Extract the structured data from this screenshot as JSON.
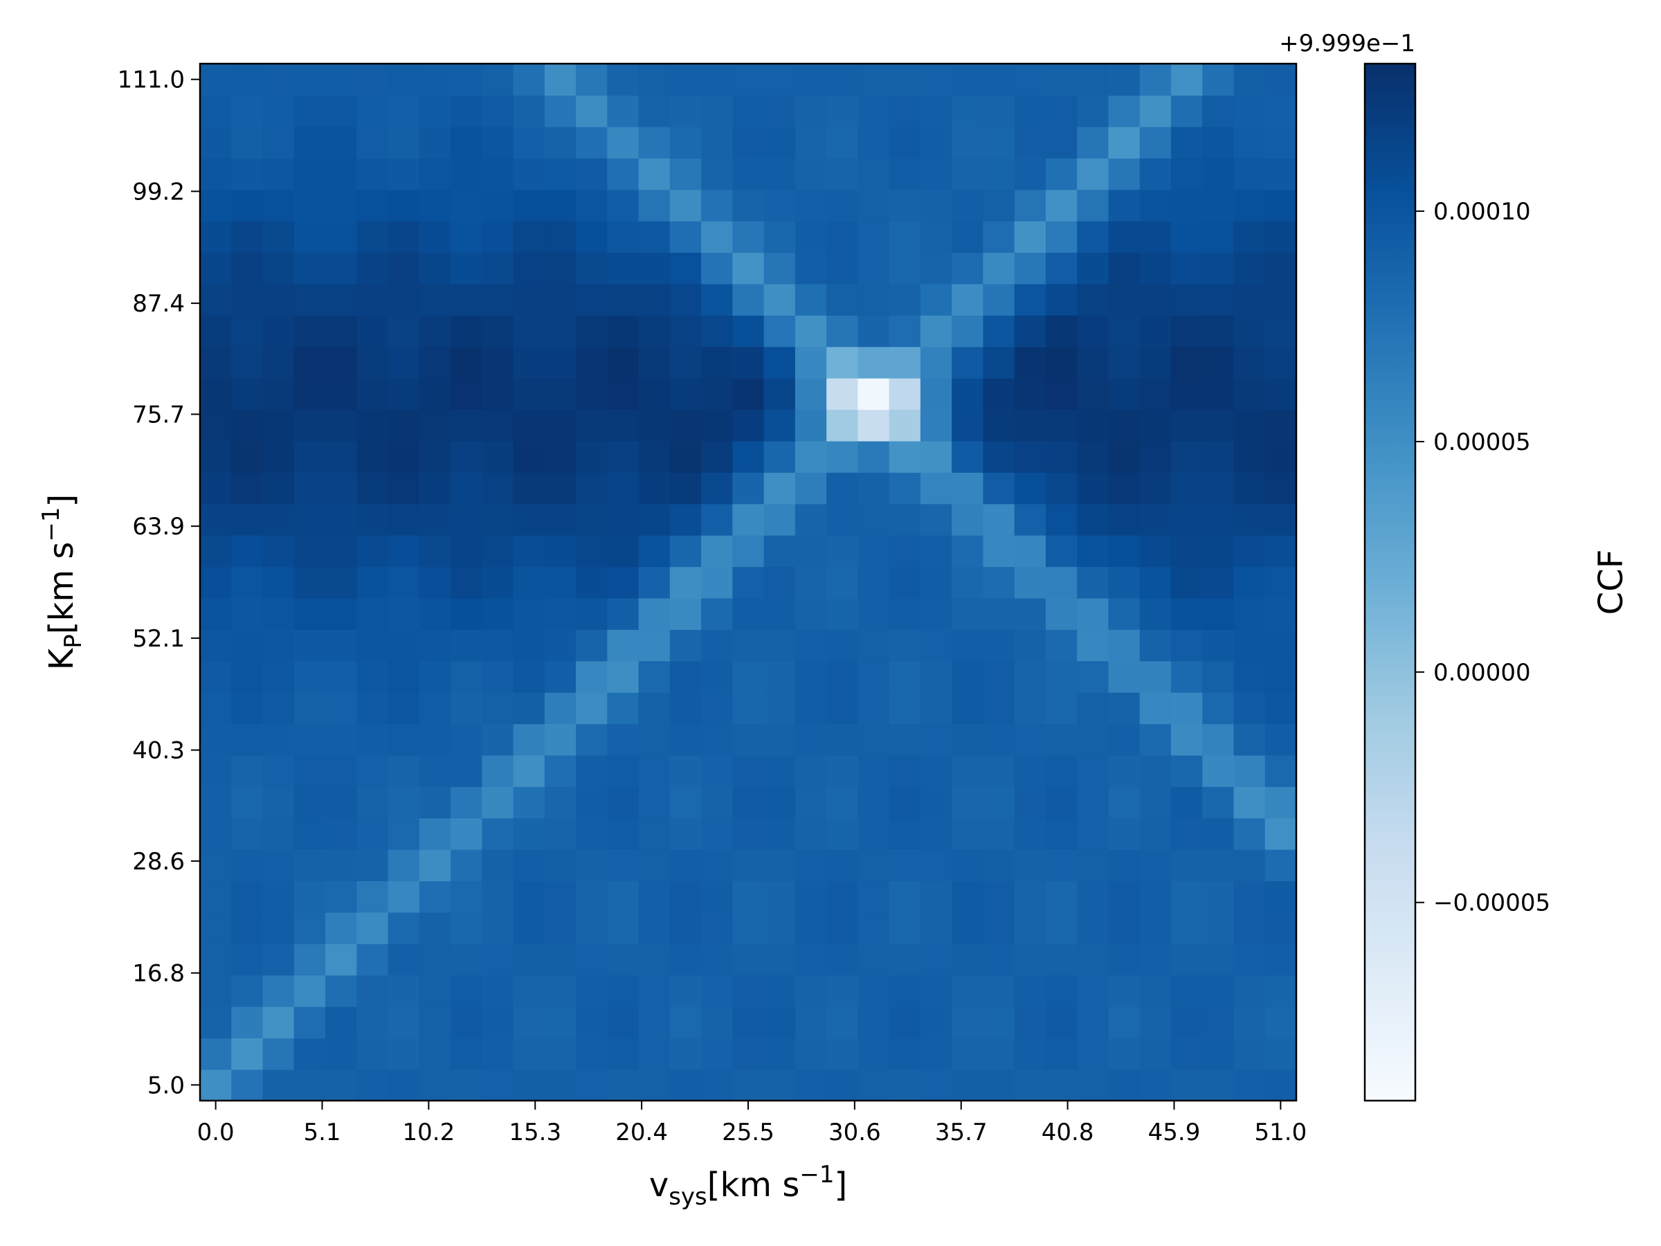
{
  "chart_data": {
    "type": "heatmap",
    "colormap": "Blues",
    "xlabel": "v_sys [km s^-1]",
    "ylabel": "K_P [km s^-1]",
    "colorbar_label": "CCF",
    "colorbar_offset": "+9.999e−1",
    "x_ticks": [
      "0.0",
      "5.1",
      "10.2",
      "15.3",
      "20.4",
      "25.5",
      "30.6",
      "35.7",
      "40.8",
      "45.9",
      "51.0"
    ],
    "x_tick_values": [
      0.0,
      5.1,
      10.2,
      15.3,
      20.4,
      25.5,
      30.6,
      35.7,
      40.8,
      45.9,
      51.0
    ],
    "y_ticks": [
      "5.0",
      "16.8",
      "28.6",
      "40.3",
      "52.1",
      "63.9",
      "75.7",
      "87.4",
      "99.2",
      "111.0"
    ],
    "y_tick_values": [
      5.0,
      16.8,
      28.6,
      40.3,
      52.1,
      63.9,
      75.7,
      87.4,
      99.2,
      111.0
    ],
    "colorbar_ticks": [
      "−0.00005",
      "0.00000",
      "0.00005",
      "0.00010"
    ],
    "colorbar_tick_values": [
      -5e-05,
      0.0,
      5e-05,
      0.0001
    ],
    "x_range": [
      0.0,
      51.0
    ],
    "y_range": [
      5.0,
      111.0
    ],
    "grid_shape": {
      "nx": 35,
      "ny": 33
    },
    "color_range": [
      -9.3e-05,
      0.000132
    ],
    "features": {
      "peak": {
        "vsys": 31.5,
        "kp": 77.0,
        "value": -9.3e-05
      },
      "band_center_vsys": 31.5,
      "band_center_kp": 77.0,
      "band_value": 5e-05,
      "background_value": 9e-05,
      "dark_lobe_value": 0.00013
    }
  }
}
